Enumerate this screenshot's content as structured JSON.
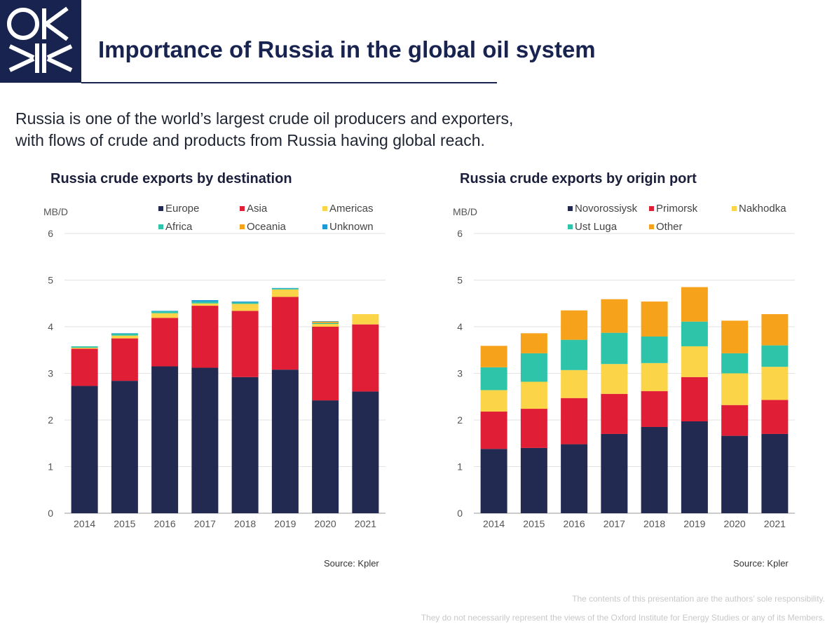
{
  "title": "Importance of Russia in the global oil system",
  "subtitle_line1": "Russia is one of the world’s largest crude oil producers and exporters,",
  "subtitle_line2": "with flows of crude and products from Russia having global reach.",
  "source_left": "Source: Kpler",
  "source_right": "Source: Kpler",
  "disclaimer_line1": "The contents of this presentation are the authors’ sole responsibility.",
  "disclaimer_line2": "They do not necessarily represent the views of the Oxford Institute for Energy Studies or any of its Members.",
  "chart_data": [
    {
      "type": "bar",
      "stacked": true,
      "title": "Russia crude exports by destination",
      "ylabel": "MB/D",
      "ylim": [
        0,
        6
      ],
      "yticks": [
        0,
        1,
        2,
        3,
        4,
        5,
        6
      ],
      "categories": [
        "2014",
        "2015",
        "2016",
        "2017",
        "2018",
        "2019",
        "2020",
        "2021"
      ],
      "series": [
        {
          "name": "Europe",
          "color": "#222a52",
          "values": [
            2.73,
            2.84,
            3.15,
            3.12,
            2.92,
            3.08,
            2.42,
            2.61
          ]
        },
        {
          "name": "Asia",
          "color": "#e01f36",
          "values": [
            0.8,
            0.91,
            1.04,
            1.33,
            1.42,
            1.56,
            1.58,
            1.44
          ]
        },
        {
          "name": "Americas",
          "color": "#fcd447",
          "values": [
            0.02,
            0.06,
            0.1,
            0.05,
            0.15,
            0.16,
            0.06,
            0.22
          ]
        },
        {
          "name": "Africa",
          "color": "#2ec4a9",
          "values": [
            0.03,
            0.04,
            0.04,
            0.04,
            0.03,
            0.02,
            0.02,
            0.0
          ]
        },
        {
          "name": "Oceania",
          "color": "#f7a21b",
          "values": [
            0.0,
            0.0,
            0.0,
            0.0,
            0.0,
            0.0,
            0.03,
            0.0
          ]
        },
        {
          "name": "Unknown",
          "color": "#1a9ad6",
          "values": [
            0.0,
            0.01,
            0.01,
            0.03,
            0.02,
            0.01,
            0.01,
            0.0
          ]
        }
      ]
    },
    {
      "type": "bar",
      "stacked": true,
      "title": "Russia crude exports by origin port",
      "ylabel": "MB/D",
      "ylim": [
        0,
        6
      ],
      "yticks": [
        0,
        1,
        2,
        3,
        4,
        5,
        6
      ],
      "categories": [
        "2014",
        "2015",
        "2016",
        "2017",
        "2018",
        "2019",
        "2020",
        "2021"
      ],
      "series": [
        {
          "name": "Novorossiysk",
          "color": "#222a52",
          "values": [
            1.38,
            1.4,
            1.48,
            1.7,
            1.85,
            1.97,
            1.66,
            1.7
          ]
        },
        {
          "name": "Primorsk",
          "color": "#e01f36",
          "values": [
            0.8,
            0.84,
            0.99,
            0.86,
            0.77,
            0.95,
            0.66,
            0.73
          ]
        },
        {
          "name": "Nakhodka",
          "color": "#fcd447",
          "values": [
            0.46,
            0.58,
            0.6,
            0.64,
            0.6,
            0.66,
            0.68,
            0.71
          ]
        },
        {
          "name": "Ust Luga",
          "color": "#2ec4a9",
          "values": [
            0.49,
            0.61,
            0.65,
            0.67,
            0.57,
            0.53,
            0.43,
            0.46
          ]
        },
        {
          "name": "Other",
          "color": "#f7a21b",
          "values": [
            0.46,
            0.43,
            0.63,
            0.72,
            0.75,
            0.74,
            0.7,
            0.67
          ]
        }
      ]
    }
  ]
}
